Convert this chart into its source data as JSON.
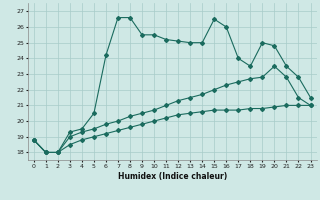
{
  "title": "",
  "xlabel": "Humidex (Indice chaleur)",
  "ylabel": "",
  "xlim": [
    -0.5,
    23.5
  ],
  "ylim": [
    17.5,
    27.5
  ],
  "yticks": [
    18,
    19,
    20,
    21,
    22,
    23,
    24,
    25,
    26,
    27
  ],
  "xticks": [
    0,
    1,
    2,
    3,
    4,
    5,
    6,
    7,
    8,
    9,
    10,
    11,
    12,
    13,
    14,
    15,
    16,
    17,
    18,
    19,
    20,
    21,
    22,
    23
  ],
  "background_color": "#cfe8e5",
  "grid_color": "#a8ccc9",
  "line_color": "#1a6b5e",
  "series": [
    [
      18.8,
      18.0,
      18.0,
      19.3,
      19.5,
      20.5,
      24.2,
      26.6,
      26.6,
      25.5,
      25.5,
      25.2,
      25.1,
      25.0,
      25.0,
      26.5,
      26.0,
      24.0,
      23.5,
      25.0,
      24.8,
      23.5,
      22.8,
      21.5
    ],
    [
      18.8,
      18.0,
      18.0,
      19.0,
      19.3,
      19.5,
      19.8,
      20.0,
      20.3,
      20.5,
      20.7,
      21.0,
      21.3,
      21.5,
      21.7,
      22.0,
      22.3,
      22.5,
      22.7,
      22.8,
      23.5,
      22.8,
      21.5,
      21.0
    ],
    [
      18.8,
      18.0,
      18.0,
      18.5,
      18.8,
      19.0,
      19.2,
      19.4,
      19.6,
      19.8,
      20.0,
      20.2,
      20.4,
      20.5,
      20.6,
      20.7,
      20.7,
      20.7,
      20.8,
      20.8,
      20.9,
      21.0,
      21.0,
      21.0
    ]
  ]
}
